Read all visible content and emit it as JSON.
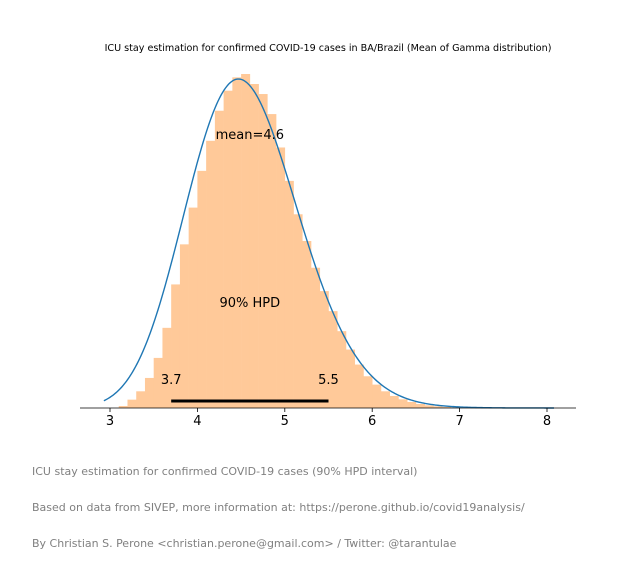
{
  "chart_data": {
    "type": "bar",
    "title": "ICU stay estimation for confirmed COVID-19 cases in BA/Brazil (Mean of Gamma distribution)",
    "xlabel": "",
    "ylabel": "",
    "xlim": [
      2.85,
      8.35
    ],
    "x_ticks": [
      3,
      4,
      5,
      6,
      7,
      8
    ],
    "grid": false,
    "histogram": {
      "color": "#ffc999",
      "bin_width": 0.1,
      "bin_starts": [
        3.1,
        3.2,
        3.3,
        3.4,
        3.5,
        3.6,
        3.7,
        3.8,
        3.9,
        4.0,
        4.1,
        4.2,
        4.3,
        4.4,
        4.5,
        4.6,
        4.7,
        4.8,
        4.9,
        5.0,
        5.1,
        5.2,
        5.3,
        5.4,
        5.5,
        5.6,
        5.7,
        5.8,
        5.9,
        6.0,
        6.1,
        6.2,
        6.3,
        6.4,
        6.5,
        6.6,
        6.7,
        6.8
      ],
      "relative_heights": [
        0.006,
        0.025,
        0.05,
        0.09,
        0.15,
        0.24,
        0.37,
        0.49,
        0.6,
        0.71,
        0.8,
        0.89,
        0.95,
        0.99,
        1.0,
        0.97,
        0.94,
        0.88,
        0.78,
        0.68,
        0.58,
        0.5,
        0.42,
        0.35,
        0.29,
        0.23,
        0.175,
        0.13,
        0.095,
        0.07,
        0.05,
        0.036,
        0.026,
        0.018,
        0.012,
        0.008,
        0.005,
        0.003
      ]
    },
    "density_curve": {
      "color": "#1f77b4",
      "x_range": [
        2.93,
        8.08
      ],
      "mode": 4.47,
      "relative_peak": 0.985
    },
    "mean": 4.6,
    "hpd": {
      "label": "90% HPD",
      "lower": 3.7,
      "upper": 5.5,
      "lower_label": "3.7",
      "upper_label": "5.5"
    },
    "mean_label": "mean=4.6"
  },
  "footer": {
    "line1": "ICU stay estimation for confirmed COVID-19 cases (90% HPD interval)",
    "line2": "Based on data from SIVEP, more information at: https://perone.github.io/covid19analysis/",
    "line3": "By Christian S. Perone <christian.perone@gmail.com> / Twitter: @tarantulae"
  }
}
